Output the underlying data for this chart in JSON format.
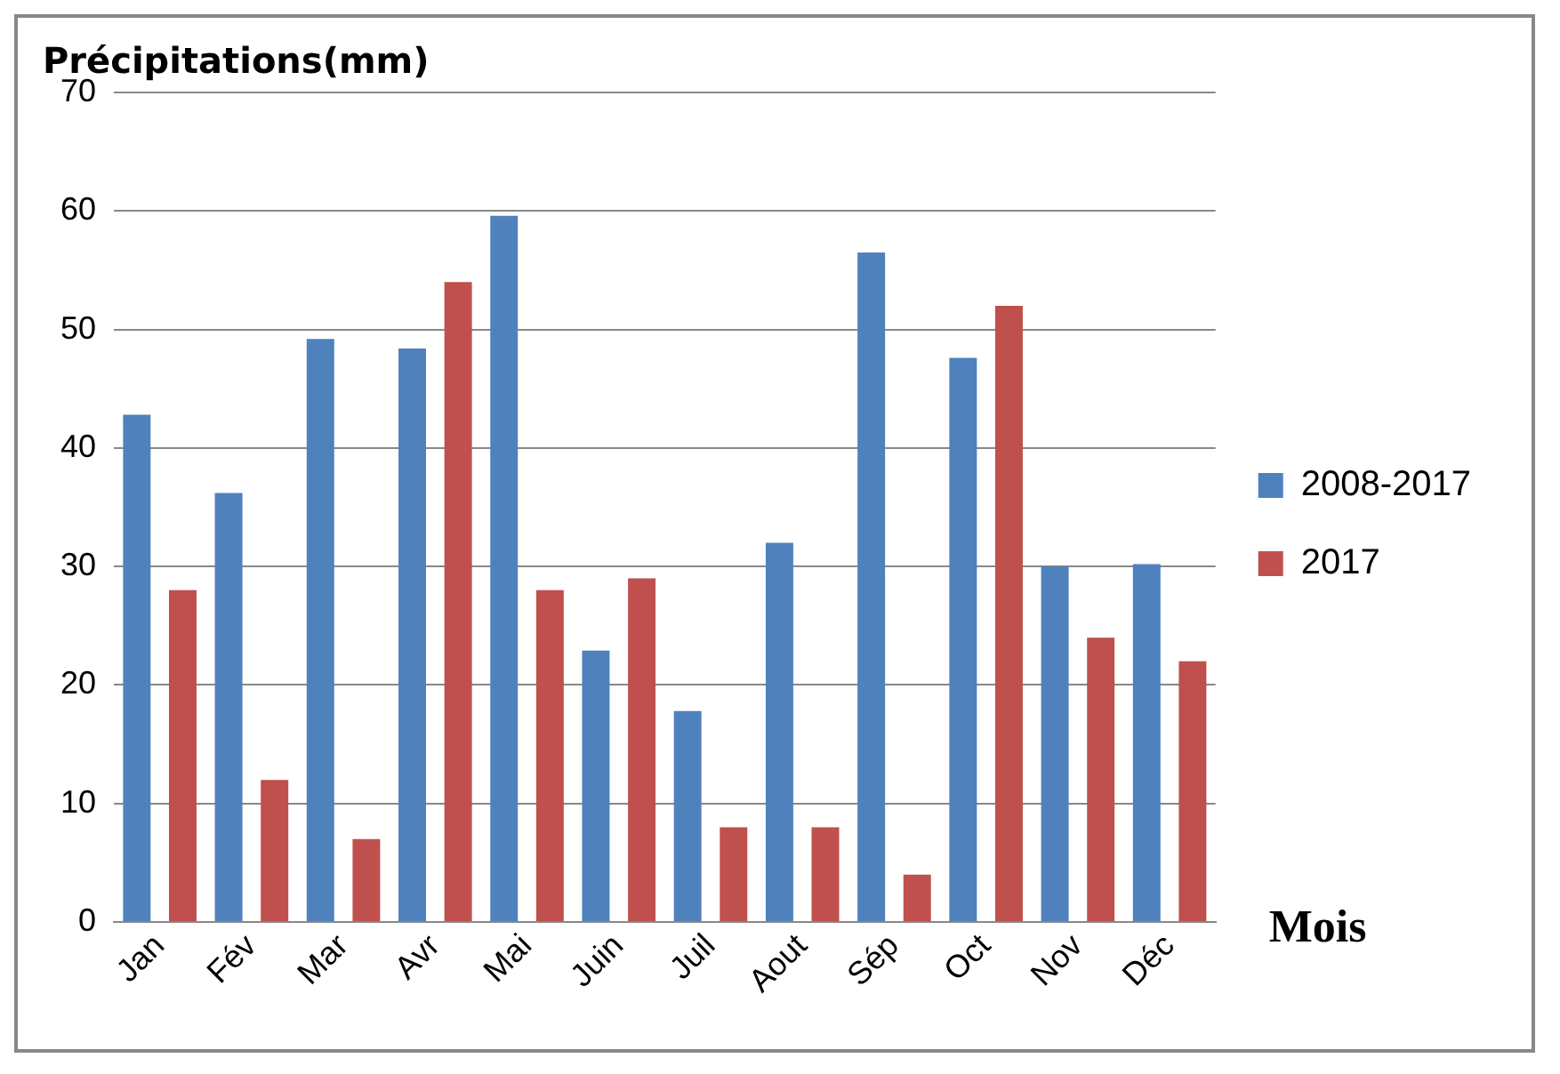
{
  "chart_data": {
    "type": "bar",
    "ylabel": "Précipitations(mm)",
    "xlabel": "Mois",
    "categories": [
      "Jan",
      "Fév",
      "Mar",
      "Avr",
      "Mai",
      "Juin",
      "Juil",
      "Aout",
      "Sép",
      "Oct",
      "Nov",
      "Déc"
    ],
    "series": [
      {
        "name": "2008-2017",
        "color": "#4f81bd",
        "values": [
          42.8,
          36.2,
          49.2,
          48.4,
          59.6,
          22.9,
          17.8,
          32,
          56.5,
          47.6,
          30,
          30.2
        ]
      },
      {
        "name": "2017",
        "color": "#c0504d",
        "values": [
          28,
          12,
          7,
          54,
          28,
          29,
          8,
          8,
          4,
          52,
          24,
          22
        ]
      }
    ],
    "ylim": [
      0,
      70
    ],
    "yticks": [
      0,
      10,
      20,
      30,
      40,
      50,
      60,
      70
    ],
    "grid": "y",
    "legend": "right"
  }
}
